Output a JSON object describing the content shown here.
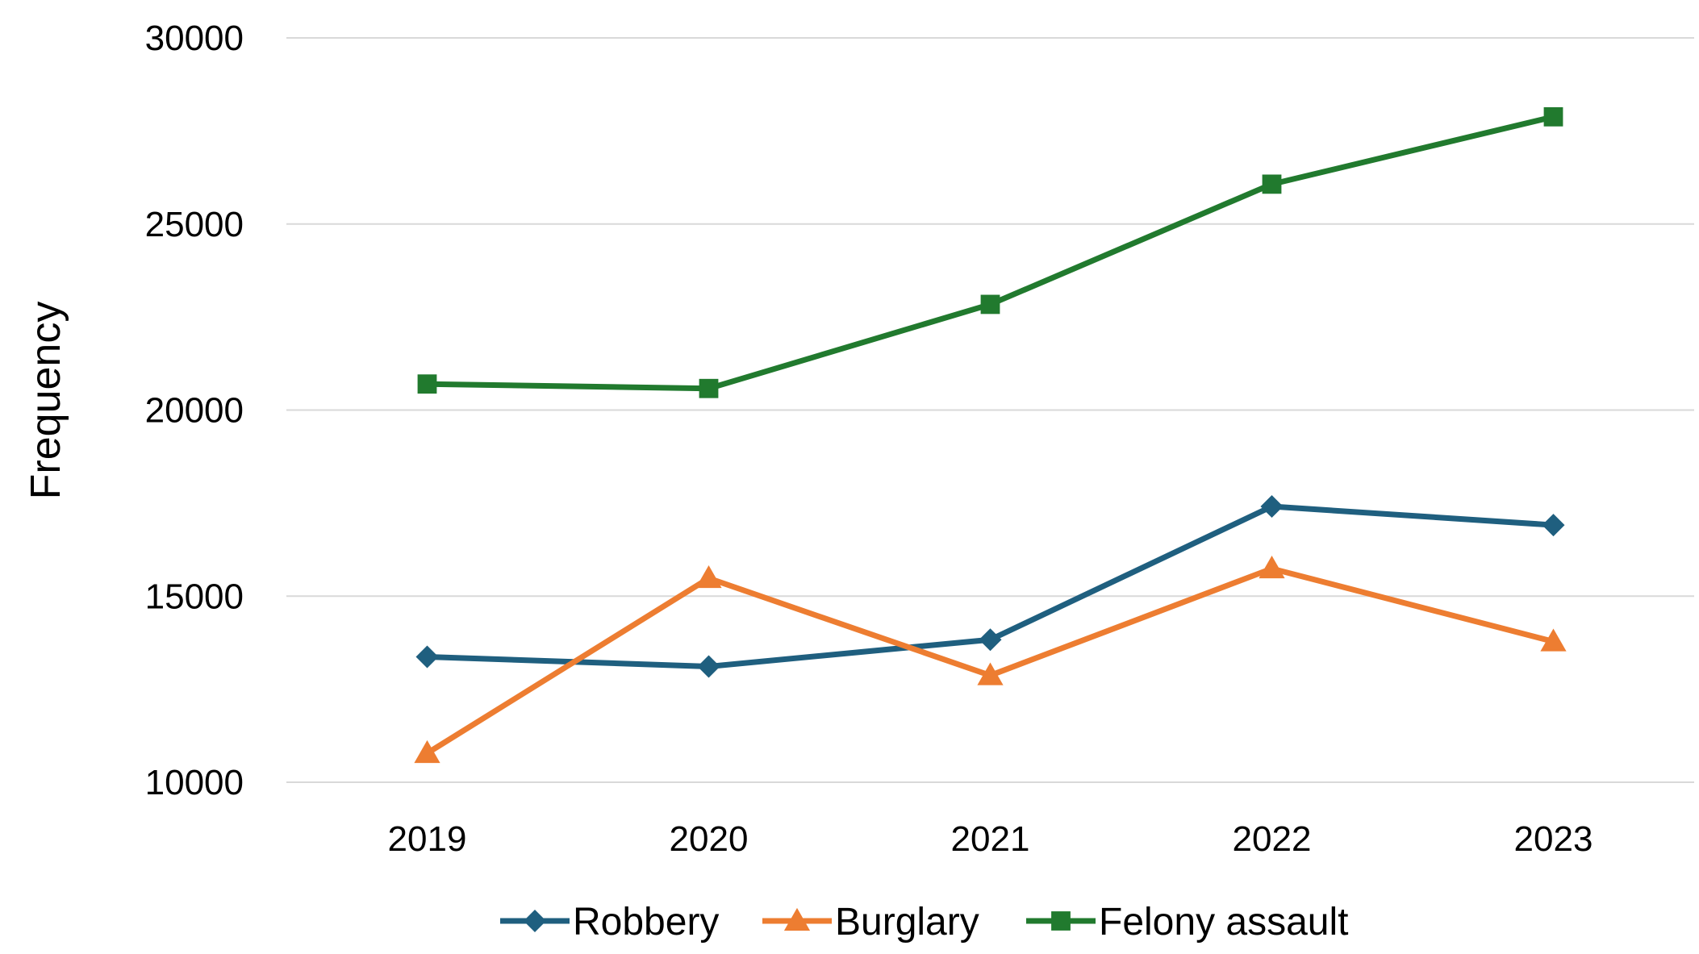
{
  "chart_data": {
    "type": "line",
    "title": "",
    "xlabel": "",
    "ylabel": "Frequency",
    "categories": [
      "2019",
      "2020",
      "2021",
      "2022",
      "2023"
    ],
    "ylim": [
      10000,
      30000
    ],
    "yticks": [
      10000,
      15000,
      20000,
      25000,
      30000
    ],
    "grid": true,
    "legend": "bottom",
    "series": [
      {
        "name": "Robbery",
        "values": [
          13370,
          13110,
          13830,
          17410,
          16910
        ],
        "color": "#1f5f7f",
        "marker": "diamond"
      },
      {
        "name": "Burglary",
        "values": [
          10780,
          15480,
          12870,
          15740,
          13780
        ],
        "color": "#ed7d31",
        "marker": "triangle"
      },
      {
        "name": "Felony assault",
        "values": [
          20700,
          20580,
          22840,
          26070,
          27880
        ],
        "color": "#217a2e",
        "marker": "square"
      }
    ]
  }
}
